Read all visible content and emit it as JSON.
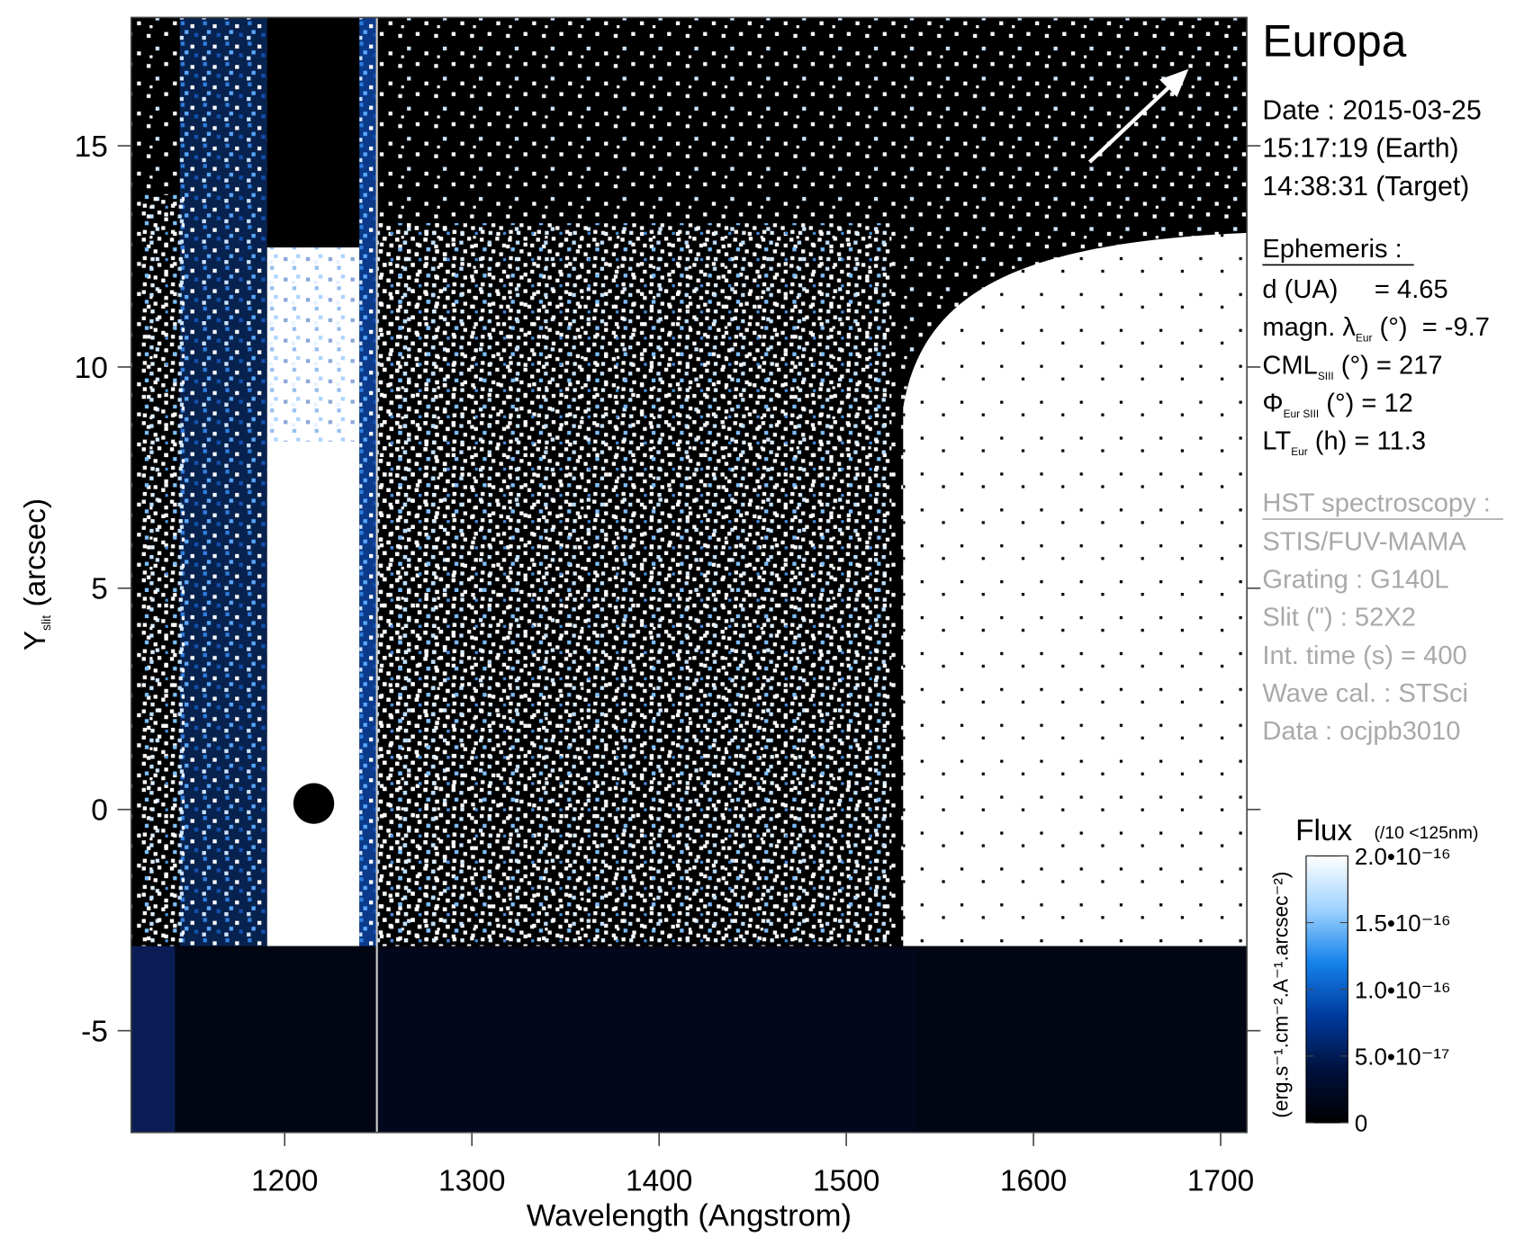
{
  "chart_data": {
    "type": "heatmap",
    "title": "Europa",
    "x_label": "Wavelength (Angstrom)",
    "y_label": {
      "main": "Y",
      "sub": "slit",
      "rest": " (arcsec)"
    },
    "xlim": [
      1118,
      1714
    ],
    "ylim": [
      -7.3,
      17.9
    ],
    "xticks": [
      1200,
      1300,
      1400,
      1500,
      1600,
      1700
    ],
    "yticks": [
      -5,
      0,
      5,
      10,
      15
    ],
    "info_panel": {
      "date_lines": [
        "Date : 2015-03-25",
        "15:17:19 (Earth)",
        "14:38:31 (Target)"
      ],
      "ephemeris_title": "Ephemeris :",
      "ephemeris": [
        {
          "main": "d (UA)     = 4.65",
          "sub": "",
          "rest": ""
        },
        {
          "main": "magn. λ",
          "sub": "Eur",
          "rest": " (°)  = -9.7"
        },
        {
          "main": "CML",
          "sub": "SIII",
          "rest": " (°) = 217"
        },
        {
          "main": "Φ",
          "sub": "Eur SIII",
          "rest": " (°) = 12"
        },
        {
          "main": "LT",
          "sub": "Eur",
          "rest": " (h) = 11.3"
        }
      ],
      "instrument_title": "HST spectroscopy :",
      "instrument": [
        "STIS/FUV-MAMA",
        "Grating : G140L",
        "Slit (\") : 52X2",
        "Int. time (s) = 400",
        "Wave cal. : STSci",
        "Data : ocjpb3010"
      ]
    },
    "colorbar": {
      "title": "Flux",
      "note": "(/10 <125nm)",
      "label": "(erg.s⁻¹.cm⁻².A⁻¹.arcsec⁻²)",
      "lim": [
        0,
        2e-16
      ],
      "ticks": [
        0,
        {
          "value": 5e-17,
          "label": "5.0•10⁻¹⁷"
        },
        {
          "value": 1e-16,
          "label": "1.0•10⁻¹⁶"
        },
        {
          "value": 1.5e-16,
          "label": "1.5•10⁻¹⁶"
        },
        {
          "value": 2e-16,
          "label": "2.0•10⁻¹⁶"
        }
      ],
      "colormap": [
        "#000000",
        "#00113d",
        "#003a9e",
        "#1582ea",
        "#9fd3ff",
        "#ffffff"
      ]
    }
  }
}
